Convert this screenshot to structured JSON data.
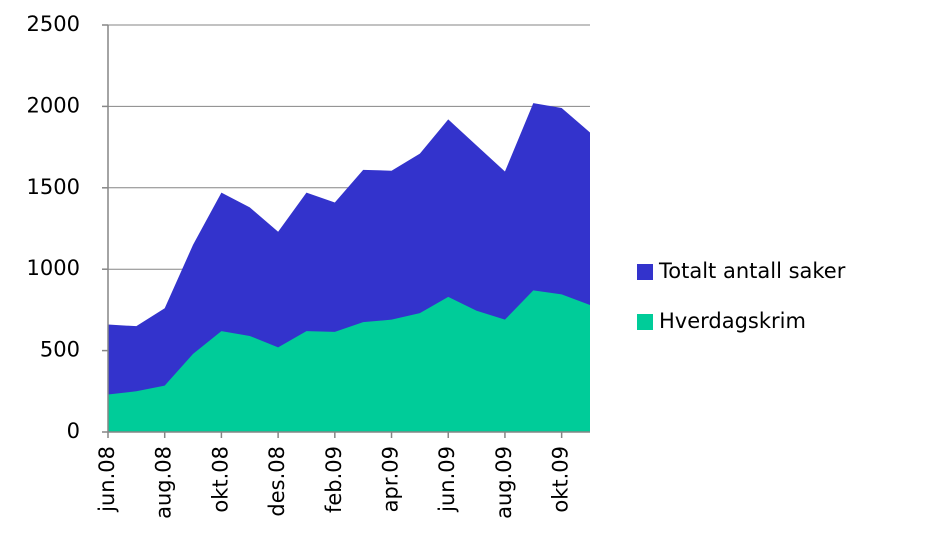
{
  "chart_data": {
    "type": "area",
    "categories": [
      "jun.08",
      null,
      "aug.08",
      null,
      "okt.08",
      null,
      "des.08",
      null,
      "feb.09",
      null,
      "apr.09",
      null,
      "jun.09",
      null,
      "aug.09",
      null,
      "okt.09",
      null
    ],
    "series": [
      {
        "name": "Totalt antall saker",
        "color": "#3333cc",
        "values": [
          660,
          650,
          760,
          1150,
          1470,
          1380,
          1230,
          1470,
          1410,
          1610,
          1605,
          1710,
          1920,
          1760,
          1600,
          2020,
          1990,
          1840
        ]
      },
      {
        "name": "Hverdagskrim",
        "color": "#00cc99",
        "values": [
          230,
          250,
          285,
          480,
          620,
          590,
          520,
          620,
          615,
          675,
          690,
          730,
          830,
          745,
          690,
          870,
          845,
          780
        ]
      }
    ],
    "ylim": [
      0,
      2500
    ],
    "yticks": [
      0,
      500,
      1000,
      1500,
      2000,
      2500
    ],
    "grid": true,
    "legend": "right"
  }
}
